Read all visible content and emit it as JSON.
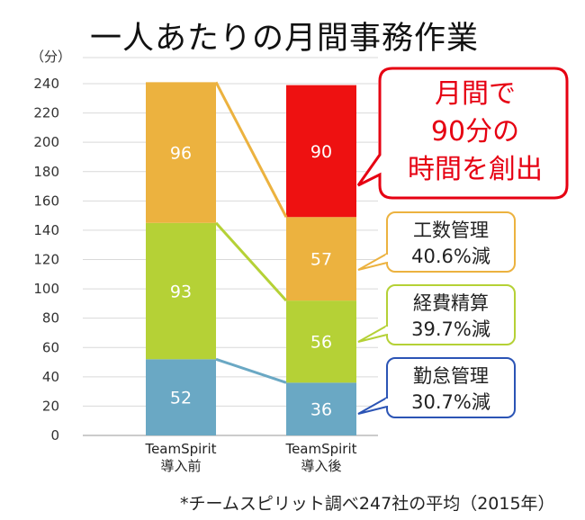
{
  "title": "一人あたりの月間事務作業",
  "unit_label": "（分）",
  "footnote": "*チームスピリット調べ247社の平均（2015年）",
  "chart_data": {
    "type": "bar",
    "stacked": true,
    "categories": [
      "TeamSpirit\n導入前",
      "TeamSpirit\n導入後"
    ],
    "series": [
      {
        "name": "勤怠管理",
        "values": [
          52,
          36
        ],
        "color": "#6aa8c4"
      },
      {
        "name": "経費精算",
        "values": [
          93,
          56
        ],
        "color": "#b5d136"
      },
      {
        "name": "工数管理",
        "values": [
          96,
          57
        ],
        "color": "#ecb23f"
      },
      {
        "name": "",
        "values": [
          0,
          90
        ],
        "color": "#ee1111"
      }
    ],
    "ylim": [
      0,
      240
    ],
    "yticks": [
      0,
      20,
      40,
      60,
      80,
      100,
      120,
      140,
      160,
      180,
      200,
      220,
      240
    ],
    "grid": true,
    "callouts": [
      {
        "target": "工数管理",
        "lines": [
          "工数管理",
          "40.6%減"
        ],
        "border": "#ecb23f"
      },
      {
        "target": "経費精算",
        "lines": [
          "経費精算",
          "39.7%減"
        ],
        "border": "#b5d136"
      },
      {
        "target": "勤怠管理",
        "lines": [
          "勤怠管理",
          "30.7%減"
        ],
        "border": "#2b54b5"
      }
    ],
    "highlight_callout": {
      "lines": [
        "月間で",
        "90分の",
        "時間を創出"
      ],
      "border": "#e60012",
      "text_color": "#e60012"
    }
  }
}
